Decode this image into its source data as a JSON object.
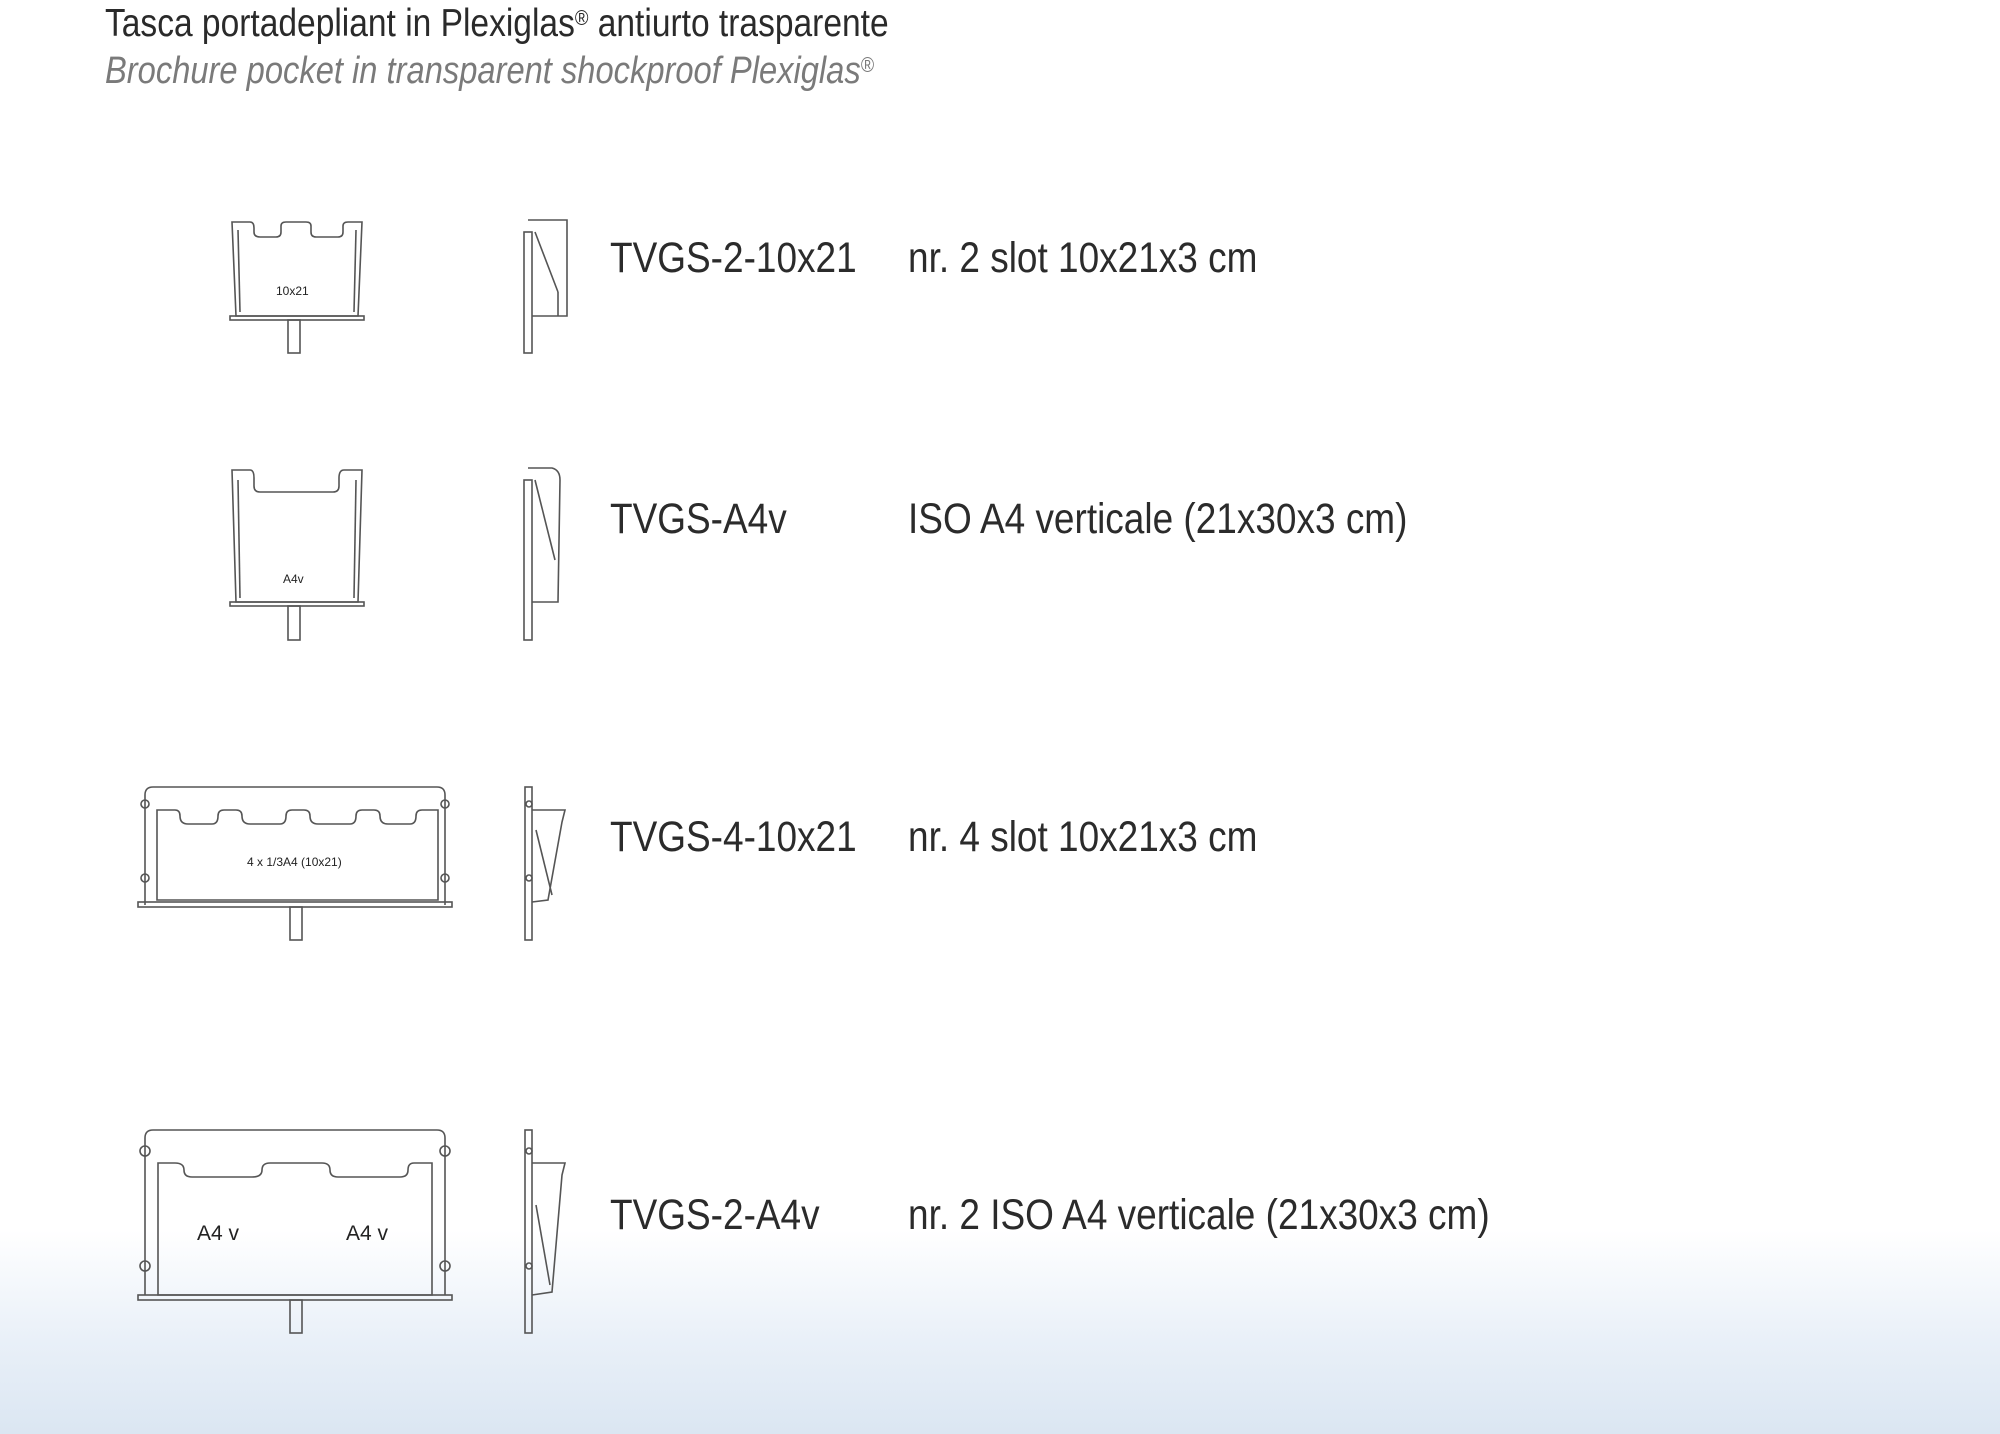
{
  "header": {
    "title": "Tasca portadepliant in Plexiglas",
    "title_suffix": " antiurto trasparente",
    "subtitle": "Brochure pocket in transparent shockproof Plexiglas",
    "registered_mark": "®"
  },
  "products": [
    {
      "code": "TVGS-2-10x21",
      "description": "nr. 2 slot  10x21x3 cm",
      "drawing_labels": [
        "10x21"
      ]
    },
    {
      "code": "TVGS-A4v",
      "description": "ISO A4 verticale (21x30x3 cm)",
      "drawing_labels": [
        "A4v"
      ]
    },
    {
      "code": "TVGS-4-10x21",
      "description": "nr. 4 slot  10x21x3 cm",
      "drawing_labels": [
        "4 x  1/3A4 (10x21)"
      ]
    },
    {
      "code": "TVGS-2-A4v",
      "description": "nr. 2 ISO A4 verticale (21x30x3 cm)",
      "drawing_labels": [
        "A4 v",
        "A4 v"
      ]
    }
  ]
}
